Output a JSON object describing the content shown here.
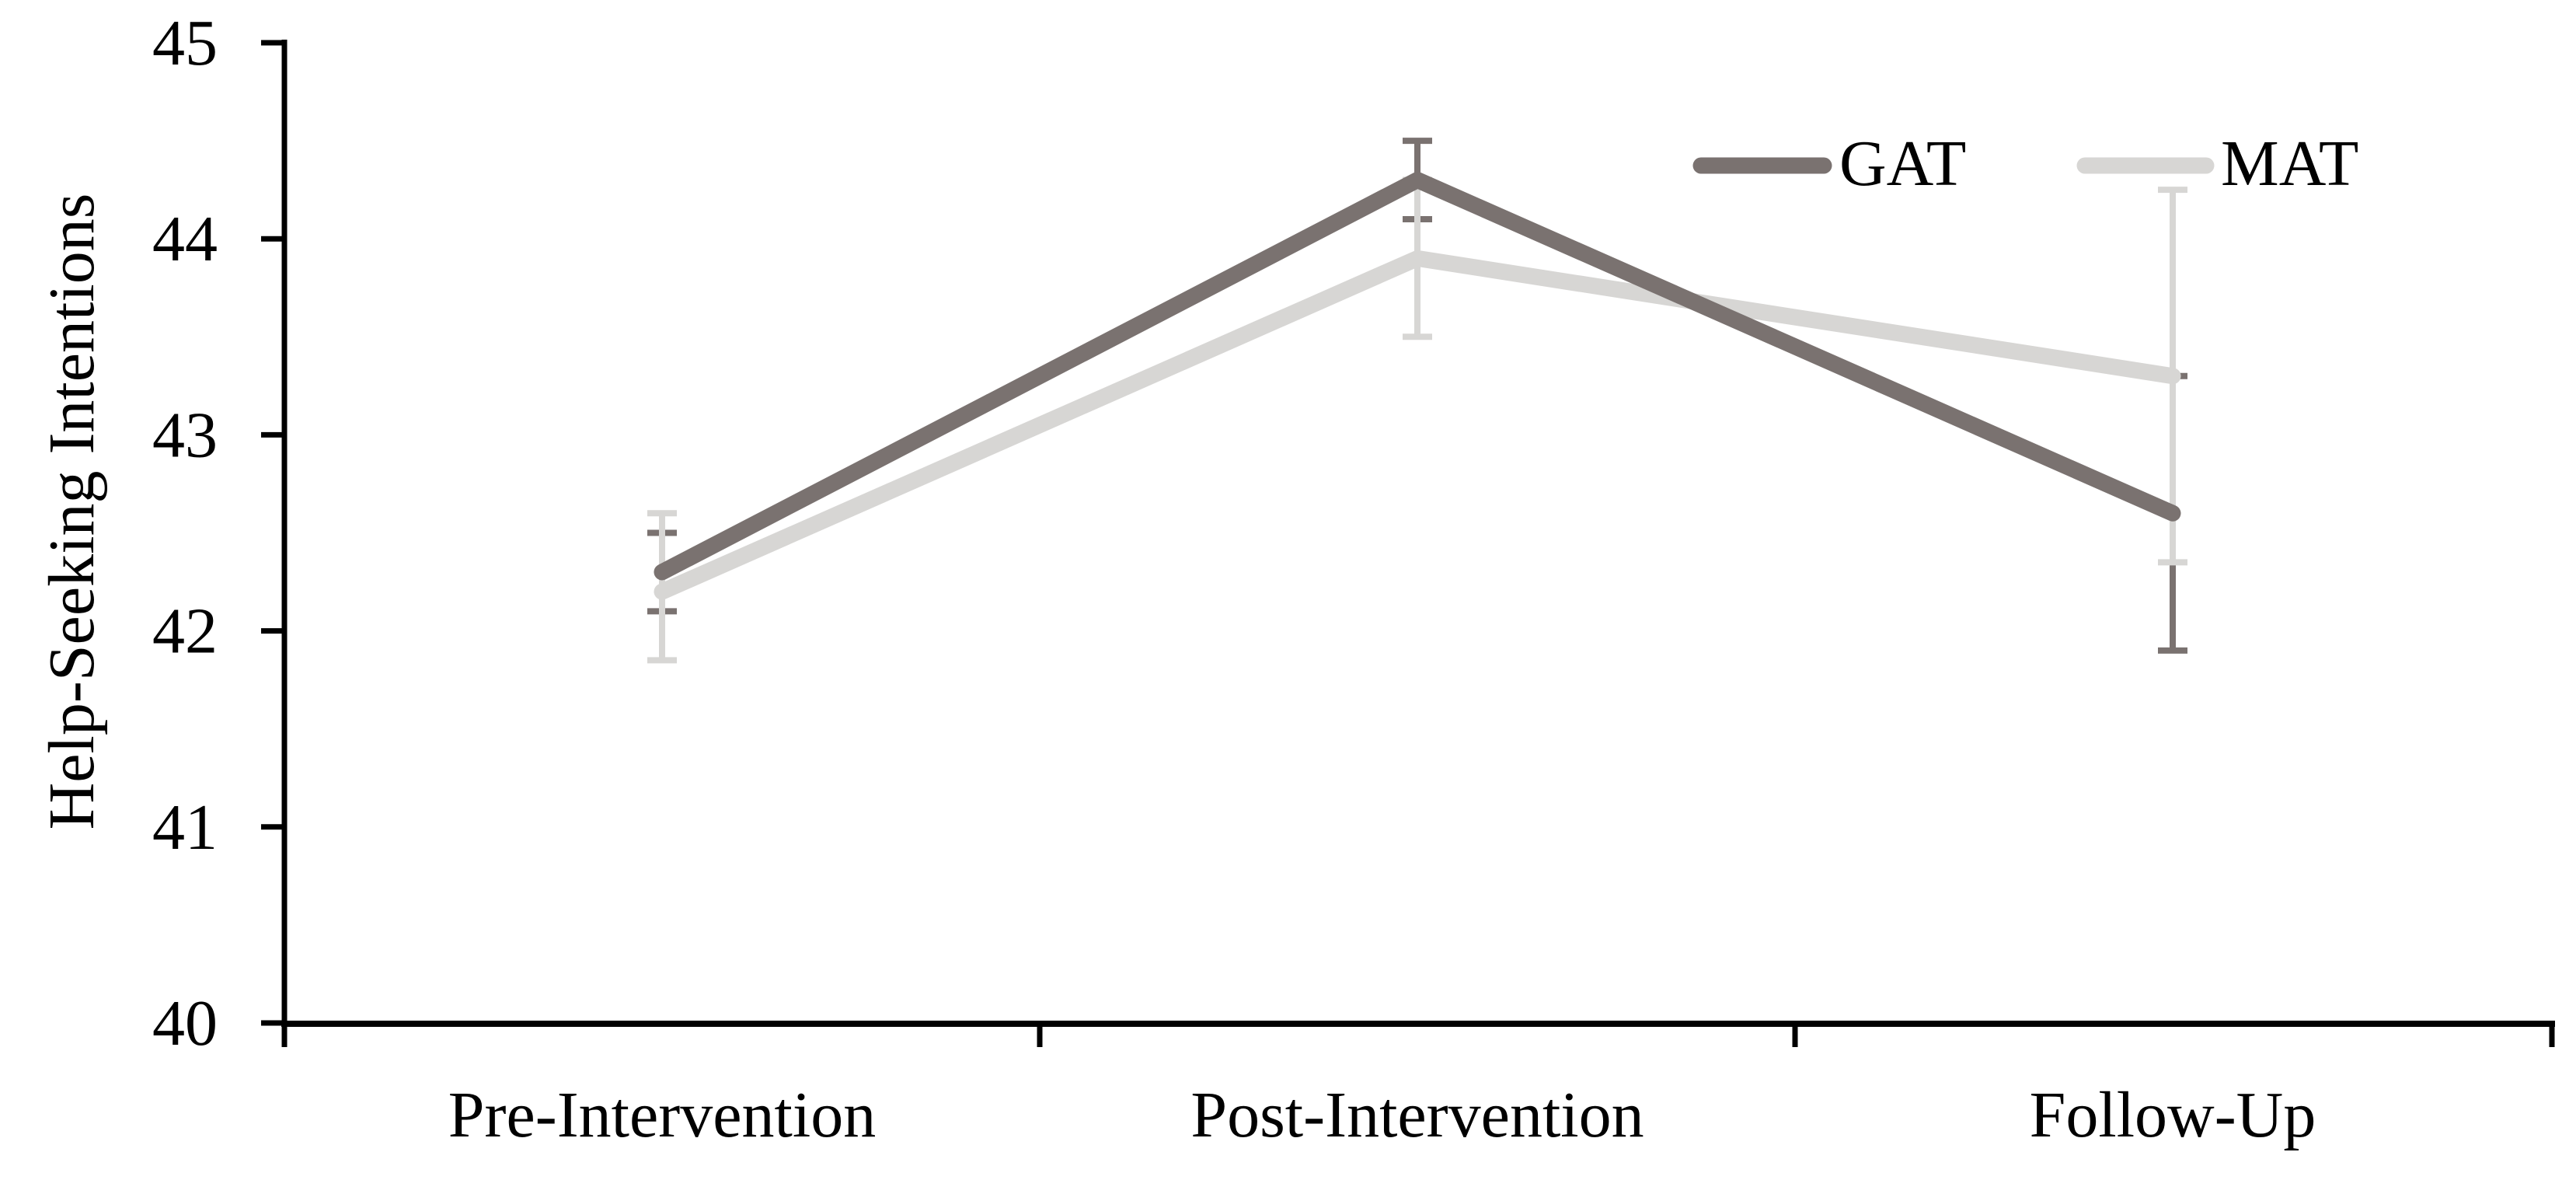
{
  "figure": {
    "background_color": "#ffffff",
    "axis_color": "#000000"
  },
  "chart_data": {
    "type": "line",
    "title": "",
    "xlabel": "",
    "ylabel": "Help-Seeking Intentions",
    "categories": [
      "Pre-Intervention",
      "Post-Intervention",
      "Follow-Up"
    ],
    "y_ticks": [
      40,
      41,
      42,
      43,
      44,
      45
    ],
    "ylim": [
      40,
      45
    ],
    "grid": false,
    "legend_position": "top-right-inside",
    "error_bars": true,
    "series": [
      {
        "name": "GAT",
        "color": "#7a7270",
        "values": [
          42.3,
          44.3,
          42.6
        ],
        "error_upper": [
          42.5,
          44.5,
          43.3
        ],
        "error_lower": [
          42.1,
          44.1,
          41.9
        ]
      },
      {
        "name": "MAT",
        "color": "#d7d6d4",
        "values": [
          42.2,
          43.9,
          43.3
        ],
        "error_upper": [
          42.6,
          44.3,
          44.25
        ],
        "error_lower": [
          41.85,
          43.5,
          42.35
        ]
      }
    ]
  }
}
